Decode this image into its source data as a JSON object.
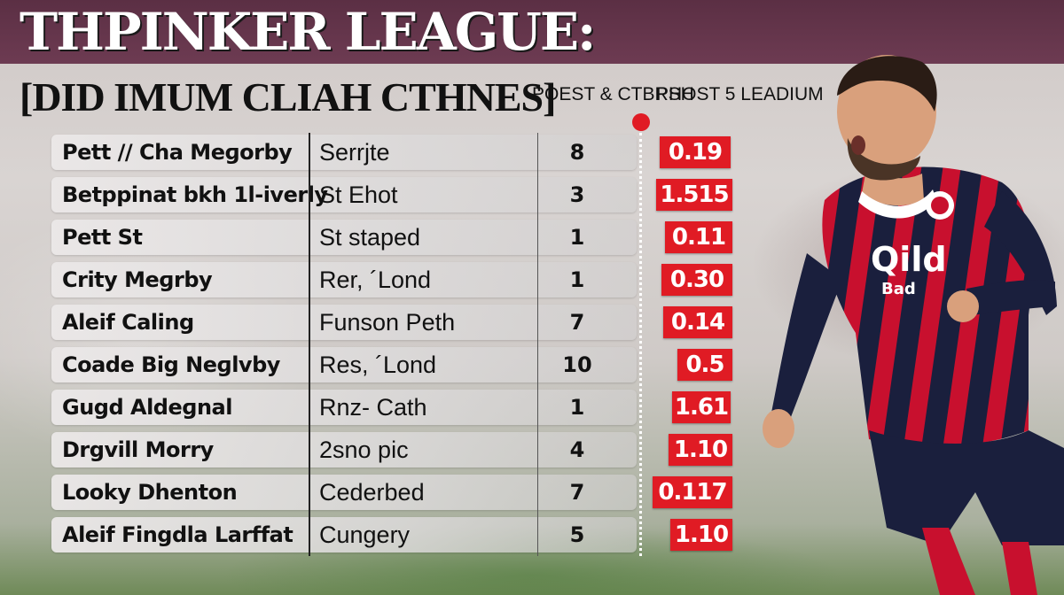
{
  "header": {
    "title": "THPINKER LEAGUE:",
    "subtitle": "[DID IMUM CLIAH CTHNES]"
  },
  "columns": {
    "points_header": "POEST & CTBRSH",
    "stat_header": "PHOST 5 LEADIUM"
  },
  "colors": {
    "title_band": "#5b2f44",
    "accent_red": "#e01b24",
    "kit_red": "#c8102e",
    "kit_navy": "#1a1f3d"
  },
  "rows": [
    {
      "name": "Pett // Cha Meɡorby",
      "club": "Serrjte",
      "points": "8",
      "stat": "0.19"
    },
    {
      "name": "Betppinat bkh 1l-iverly",
      "club": "St Ehot",
      "points": "3",
      "stat": "1.515"
    },
    {
      "name": "Pett St",
      "club": "St staped",
      "points": "1",
      "stat": "0.11"
    },
    {
      "name": "Crity Meɡrby",
      "club": "Rer, ´Lond",
      "points": "1",
      "stat": "0.30"
    },
    {
      "name": "Aleif Caling",
      "club": "Funson Peth",
      "points": "7",
      "stat": "0.14"
    },
    {
      "name": "Coade Big Neɡlvby",
      "club": "Res, ´Lond",
      "points": "10",
      "stat": "0.5"
    },
    {
      "name": "Gugd Aldeɡnal",
      "club": "Rnz- Cath",
      "points": "1",
      "stat": "1.61"
    },
    {
      "name": "Drgvill Morry",
      "club": "2sno pic",
      "points": "4",
      "stat": "1.10"
    },
    {
      "name": "Looky Dhenton",
      "club": "Cederbed",
      "points": "7",
      "stat": "0.117"
    },
    {
      "name": "Aleif Fingdla Larffat",
      "club": "Cungery",
      "points": "5",
      "stat": "1.10"
    }
  ],
  "player_photo": {
    "shirt_sponsor": "Qild",
    "shirt_sponsor_sub": "Bad"
  }
}
